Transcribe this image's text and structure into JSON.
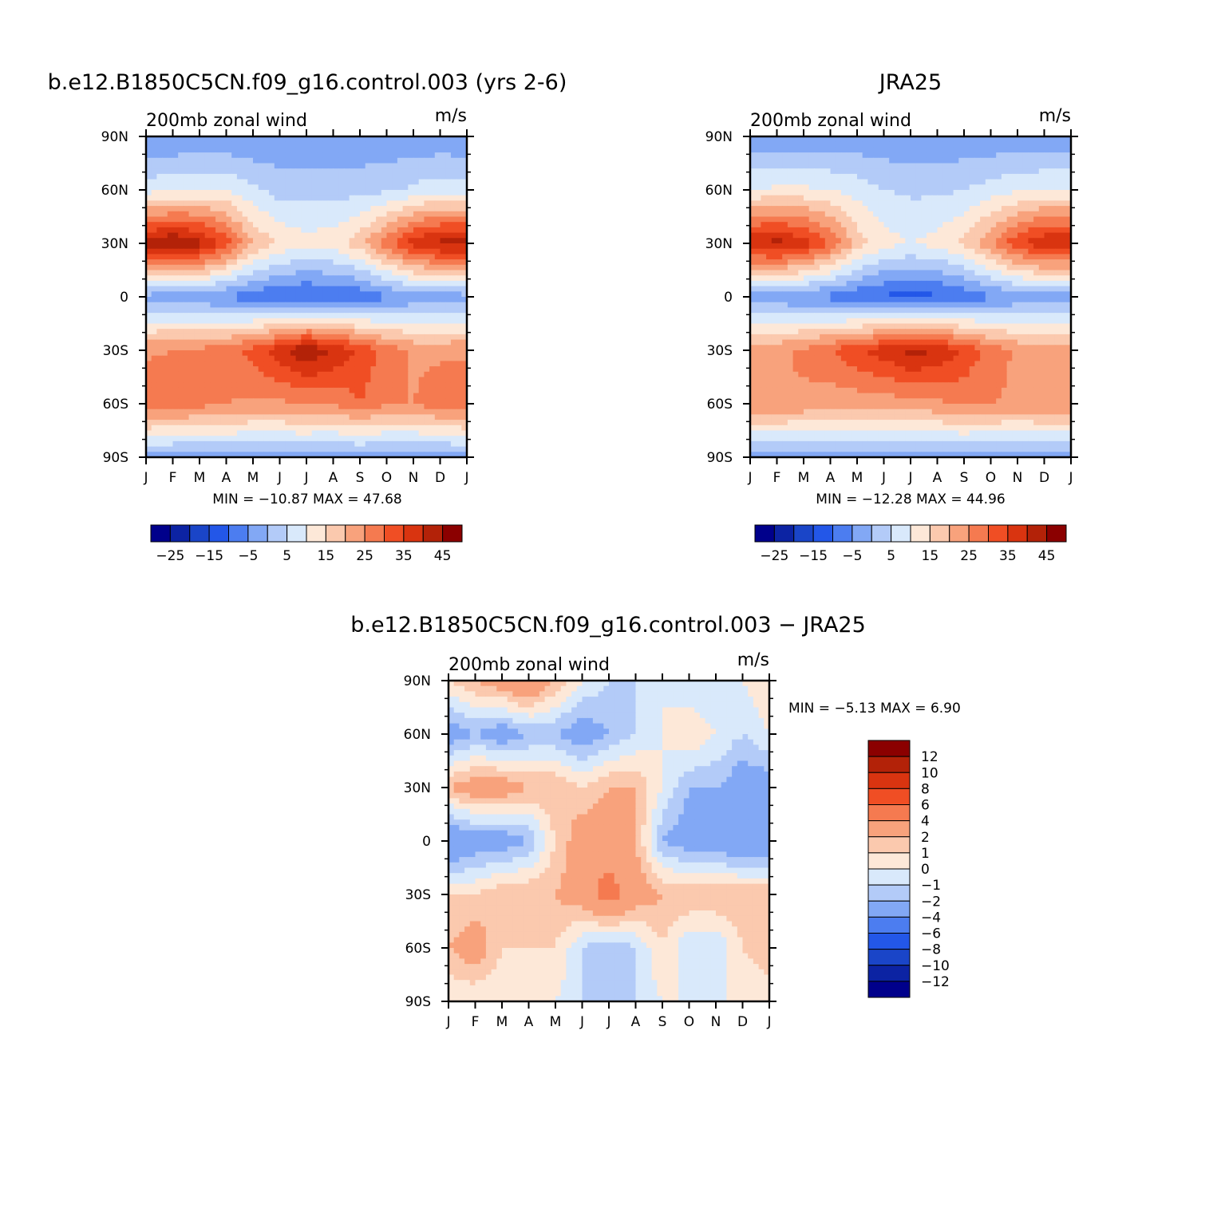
{
  "chart_data": [
    {
      "type": "heatmap",
      "title": "b.e12.B1850C5CN.f09_g16.control.003 (yrs 2-6)",
      "subtitle_left": "200mb zonal wind",
      "subtitle_right": "m/s",
      "xlabels": [
        "J",
        "F",
        "M",
        "A",
        "M",
        "J",
        "J",
        "A",
        "S",
        "O",
        "N",
        "D",
        "J"
      ],
      "ylabels": [
        "90N",
        "60N",
        "30N",
        "0",
        "30S",
        "60S",
        "90S"
      ],
      "stats": "MIN = −10.87 MAX =   47.68",
      "x": [
        0,
        1,
        2,
        3,
        4,
        5,
        6,
        7,
        8,
        9,
        10,
        11,
        12
      ],
      "y": [
        90,
        60,
        30,
        0,
        -30,
        -60,
        -90
      ],
      "z": [
        [
          -5,
          -5,
          -5,
          -5,
          -5,
          -4,
          -4,
          -4,
          -4,
          -4,
          -4,
          -4,
          -5
        ],
        [
          8,
          9,
          10,
          10,
          6,
          3,
          3,
          3,
          3,
          4,
          6,
          8,
          8
        ],
        [
          42,
          46,
          42,
          33,
          20,
          14,
          12,
          13,
          18,
          28,
          38,
          42,
          42
        ],
        [
          -2,
          -3,
          -4,
          -6,
          -8,
          -10,
          -11,
          -10,
          -9,
          -6,
          -4,
          -3,
          -2
        ],
        [
          24,
          25,
          26,
          28,
          32,
          38,
          45,
          40,
          34,
          28,
          24,
          24,
          24
        ],
        [
          30,
          29,
          27,
          25,
          24,
          24,
          25,
          25,
          30,
          25,
          25,
          28,
          30
        ],
        [
          -3,
          -3,
          -3,
          -2,
          -2,
          -2,
          -2,
          -3,
          -3,
          -3,
          -3,
          -3,
          -3
        ]
      ],
      "colorbar": {
        "labels": [
          "−25",
          "−15",
          "−5",
          "5",
          "15",
          "25",
          "35",
          "45"
        ],
        "levels": [
          -30,
          -25,
          -20,
          -15,
          -10,
          -5,
          0,
          5,
          10,
          15,
          20,
          25,
          30,
          35,
          40,
          45,
          50
        ]
      }
    },
    {
      "type": "heatmap",
      "title": "JRA25",
      "subtitle_left": "200mb zonal wind",
      "subtitle_right": "m/s",
      "xlabels": [
        "J",
        "F",
        "M",
        "A",
        "M",
        "J",
        "J",
        "A",
        "S",
        "O",
        "N",
        "D",
        "J"
      ],
      "ylabels": [
        "90N",
        "60N",
        "30N",
        "0",
        "30S",
        "60S",
        "90S"
      ],
      "stats": "MIN = −12.28 MAX =   44.96",
      "x": [
        0,
        1,
        2,
        3,
        4,
        5,
        6,
        7,
        8,
        9,
        10,
        11,
        12
      ],
      "y": [
        90,
        60,
        30,
        0,
        -30,
        -60,
        -90
      ],
      "z": [
        [
          -4,
          -4,
          -4,
          -4,
          -4,
          -4,
          -4,
          -4,
          -4,
          -4,
          -4,
          -4,
          -4
        ],
        [
          10,
          11,
          11,
          10,
          8,
          5,
          4,
          4,
          5,
          7,
          9,
          10,
          10
        ],
        [
          40,
          42,
          38,
          30,
          18,
          12,
          10,
          12,
          16,
          25,
          34,
          40,
          40
        ],
        [
          -3,
          -4,
          -5,
          -7,
          -9,
          -11,
          -12,
          -11,
          -9,
          -6,
          -4,
          -3,
          -3
        ],
        [
          22,
          24,
          26,
          30,
          34,
          38,
          42,
          40,
          34,
          28,
          24,
          22,
          22
        ],
        [
          25,
          25,
          24,
          22,
          22,
          22,
          23,
          24,
          26,
          25,
          24,
          25,
          25
        ],
        [
          -3,
          -3,
          -3,
          -2,
          -2,
          -2,
          -2,
          -2,
          -3,
          -3,
          -3,
          -3,
          -3
        ]
      ],
      "colorbar": {
        "labels": [
          "−25",
          "−15",
          "−5",
          "5",
          "15",
          "25",
          "35",
          "45"
        ],
        "levels": [
          -30,
          -25,
          -20,
          -15,
          -10,
          -5,
          0,
          5,
          10,
          15,
          20,
          25,
          30,
          35,
          40,
          45,
          50
        ]
      }
    },
    {
      "type": "heatmap",
      "title": "b.e12.B1850C5CN.f09_g16.control.003 − JRA25",
      "subtitle_left": "200mb zonal wind",
      "subtitle_right": "m/s",
      "xlabels": [
        "J",
        "F",
        "M",
        "A",
        "M",
        "J",
        "J",
        "A",
        "S",
        "O",
        "N",
        "D",
        "J"
      ],
      "ylabels": [
        "90N",
        "60N",
        "30N",
        "0",
        "30S",
        "60S",
        "90S"
      ],
      "stats": "MIN =   −5.13 MAX =    6.90",
      "x": [
        0,
        1,
        2,
        3,
        4,
        5,
        6,
        7,
        8,
        9,
        10,
        11,
        12
      ],
      "y": [
        90,
        60,
        30,
        0,
        -30,
        -60,
        -90
      ],
      "z": [
        [
          1,
          2,
          3,
          4,
          2,
          0,
          -1,
          -1,
          0,
          -1,
          -1,
          0,
          1
        ],
        [
          -3,
          -2,
          -3,
          -2,
          -2,
          -3,
          -2,
          -1,
          0,
          1,
          0,
          -1,
          0
        ],
        [
          2,
          3,
          3,
          2,
          2,
          1,
          2,
          2,
          0,
          -2,
          -2,
          -3,
          -3
        ],
        [
          -4,
          -3,
          -3,
          -2,
          1,
          3,
          3,
          2,
          -2,
          -3,
          -3,
          -4,
          -4
        ],
        [
          1,
          1,
          2,
          2,
          2,
          3,
          5,
          3,
          2,
          2,
          2,
          2,
          2
        ],
        [
          2,
          3,
          1,
          1,
          1,
          -1,
          -2,
          -1,
          1,
          -1,
          -1,
          1,
          2
        ],
        [
          0,
          0,
          0,
          0,
          0,
          -1,
          -1,
          -1,
          0,
          0,
          0,
          0,
          0
        ]
      ],
      "colorbar": {
        "labels": [
          "12",
          "10",
          "8",
          "6",
          "4",
          "2",
          "1",
          "0",
          "−1",
          "−2",
          "−4",
          "−6",
          "−8",
          "−10",
          "−12"
        ],
        "levels": [
          -14,
          -12,
          -10,
          -8,
          -6,
          -4,
          -2,
          -1,
          0,
          1,
          2,
          4,
          6,
          8,
          10,
          12,
          14
        ]
      }
    }
  ],
  "colors": {
    "palette": [
      "#00008b",
      "#0c23a3",
      "#1a45c8",
      "#2357e8",
      "#4c7df0",
      "#82a8f5",
      "#b3cbf8",
      "#d9e9fb",
      "#fde8d8",
      "#fbc9ae",
      "#f8a27c",
      "#f57a50",
      "#f04e24",
      "#d93410",
      "#b32208",
      "#8b0000"
    ],
    "axis": "#000000"
  }
}
